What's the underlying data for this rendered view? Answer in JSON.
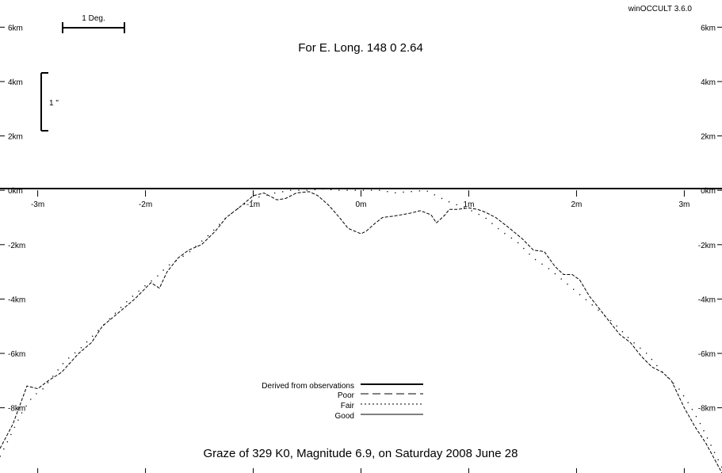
{
  "app": {
    "version_label": "winOCCULT 3.6.0"
  },
  "header": {
    "title": "For E. Long.  148  0  2.64"
  },
  "footer": {
    "text": "Graze of      329   K0,  Magnitude   6.9,  on Saturday  2008  June  28"
  },
  "scale_bars": {
    "degree_label": "1 Deg.",
    "arcsec_label": "1 \""
  },
  "legend": {
    "entries": [
      {
        "label": "Derived from observations",
        "style": "thick"
      },
      {
        "label": "Poor",
        "style": "dashed"
      },
      {
        "label": "Fair",
        "style": "dotted"
      },
      {
        "label": "Good",
        "style": "solid"
      }
    ]
  },
  "chart_data": {
    "type": "line",
    "title": "For E. Long.  148  0  2.64",
    "xlabel": "",
    "ylabel": "",
    "xlim": [
      -3.35,
      3.35
    ],
    "ylim": [
      -10.4,
      7.0
    ],
    "x_ticks": [
      {
        "value": -3,
        "label": "-3m"
      },
      {
        "value": -2,
        "label": "-2m"
      },
      {
        "value": -1,
        "label": "-1m"
      },
      {
        "value": 0,
        "label": "0m"
      },
      {
        "value": 1,
        "label": "1m"
      },
      {
        "value": 2,
        "label": "2m"
      },
      {
        "value": 3,
        "label": "3m"
      }
    ],
    "y_ticks": [
      {
        "value": 6,
        "label": "6km"
      },
      {
        "value": 4,
        "label": "4km"
      },
      {
        "value": 2,
        "label": "2km"
      },
      {
        "value": 0,
        "label": "0km"
      },
      {
        "value": -2,
        "label": "-2km"
      },
      {
        "value": -4,
        "label": "-4km"
      },
      {
        "value": -6,
        "label": "-6km"
      },
      {
        "value": -8,
        "label": "-8km"
      }
    ],
    "series": [
      {
        "name": "Poor",
        "style": "dashed",
        "x": [
          -3.35,
          -3.23,
          -3.1,
          -3.0,
          -2.9,
          -2.78,
          -2.62,
          -2.5,
          -2.4,
          -2.25,
          -2.1,
          -1.95,
          -1.87,
          -1.8,
          -1.7,
          -1.6,
          -1.48,
          -1.35,
          -1.25,
          -1.12,
          -1.0,
          -0.9,
          -0.78,
          -0.7,
          -0.6,
          -0.48,
          -0.4,
          -0.3,
          -0.2,
          -0.12,
          0.0,
          0.05,
          0.12,
          0.2,
          0.3,
          0.45,
          0.55,
          0.65,
          0.7,
          0.78,
          0.82,
          0.9,
          1.0,
          1.08,
          1.15,
          1.25,
          1.38,
          1.5,
          1.6,
          1.7,
          1.8,
          1.88,
          1.96,
          2.03,
          2.12,
          2.22,
          2.3,
          2.4,
          2.5,
          2.6,
          2.7,
          2.8,
          2.88,
          3.0,
          3.1,
          3.2,
          3.35
        ],
        "y": [
          -9.5,
          -8.6,
          -7.2,
          -7.3,
          -7.0,
          -6.7,
          -6.0,
          -5.6,
          -5.0,
          -4.5,
          -4.0,
          -3.4,
          -3.6,
          -3.0,
          -2.5,
          -2.2,
          -2.0,
          -1.5,
          -1.0,
          -0.6,
          -0.2,
          -0.1,
          -0.35,
          -0.3,
          -0.1,
          -0.05,
          -0.2,
          -0.55,
          -1.0,
          -1.4,
          -1.6,
          -1.5,
          -1.25,
          -1.0,
          -0.95,
          -0.85,
          -0.75,
          -0.9,
          -1.2,
          -0.9,
          -0.7,
          -0.7,
          -0.65,
          -0.7,
          -0.8,
          -1.0,
          -1.4,
          -1.8,
          -2.2,
          -2.25,
          -2.8,
          -3.1,
          -3.1,
          -3.3,
          -3.9,
          -4.4,
          -4.8,
          -5.3,
          -5.6,
          -6.1,
          -6.5,
          -6.7,
          -7.0,
          -8.0,
          -8.7,
          -9.3,
          -10.4
        ]
      },
      {
        "name": "Fair",
        "style": "dotted",
        "x": [
          -3.35,
          -3.25,
          -3.15,
          -3.05,
          -2.95,
          -2.85,
          -2.75,
          -2.6,
          -2.45,
          -2.3,
          -2.15,
          -2.0,
          -1.9,
          -1.8,
          -1.6,
          -1.4,
          -1.25,
          -1.1,
          -0.95,
          -0.8,
          -0.65,
          -0.5,
          -0.35,
          -0.2,
          -0.1,
          0.05,
          0.2,
          0.3,
          0.45,
          0.6,
          0.8,
          1.0,
          1.15,
          1.3,
          1.45,
          1.6,
          1.75,
          1.9,
          2.05,
          2.2,
          2.35,
          2.5,
          2.65,
          2.8,
          2.95,
          3.05,
          3.15,
          3.25,
          3.35
        ],
        "y": [
          -9.8,
          -9.0,
          -8.2,
          -7.6,
          -7.3,
          -6.8,
          -6.3,
          -5.8,
          -5.2,
          -4.6,
          -4.0,
          -3.5,
          -3.2,
          -2.8,
          -2.3,
          -1.6,
          -1.0,
          -0.55,
          -0.25,
          -0.1,
          0.0,
          0.0,
          0.05,
          0.0,
          0.0,
          0.0,
          0.0,
          -0.1,
          -0.05,
          0.0,
          -0.4,
          -0.7,
          -1.0,
          -1.5,
          -1.9,
          -2.5,
          -2.9,
          -3.4,
          -3.9,
          -4.4,
          -4.9,
          -5.5,
          -6.0,
          -6.7,
          -7.3,
          -7.9,
          -8.6,
          -9.4,
          -10.2
        ]
      }
    ]
  }
}
